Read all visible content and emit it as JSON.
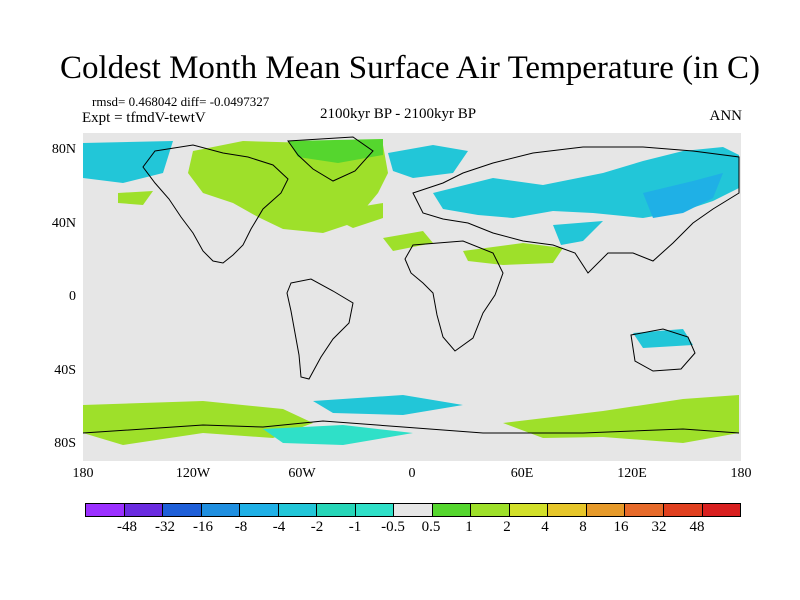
{
  "title": "Coldest Month Mean Surface Air Temperature (in C)",
  "stats": "rmsd= 0.468042 diff= -0.0497327",
  "experiment": "Expt = tfmdV-tewtV",
  "period": "2100kyr BP - 2100kyr BP",
  "season": "ANN",
  "lat_labels": [
    "80N",
    "40N",
    "0",
    "40S",
    "80S"
  ],
  "lon_labels": [
    "180",
    "120W",
    "60W",
    "0",
    "60E",
    "120E",
    "180"
  ],
  "colorbar": {
    "labels": [
      "-48",
      "-32",
      "-16",
      "-8",
      "-4",
      "-2",
      "-1",
      "-0.5",
      "0.5",
      "1",
      "2",
      "4",
      "8",
      "16",
      "32",
      "48"
    ],
    "colors": [
      "#9b30ff",
      "#6a2be0",
      "#1e5fd8",
      "#1f8fe0",
      "#1fb0e6",
      "#22c6d8",
      "#26d6b8",
      "#2fe0c8",
      "#e6e6e6",
      "#55d62e",
      "#9ee02a",
      "#d2e02a",
      "#e6c62a",
      "#e69a2a",
      "#e66a2a",
      "#e0401f",
      "#d81f1f"
    ]
  },
  "map_colors": {
    "neutral": "#e6e6e6",
    "cool_light": "#2fe0c8",
    "cool": "#22c6d8",
    "cool_strong": "#1fb0e6",
    "warm_light": "#55d62e",
    "warm": "#9ee02a",
    "coast": "#000000"
  }
}
